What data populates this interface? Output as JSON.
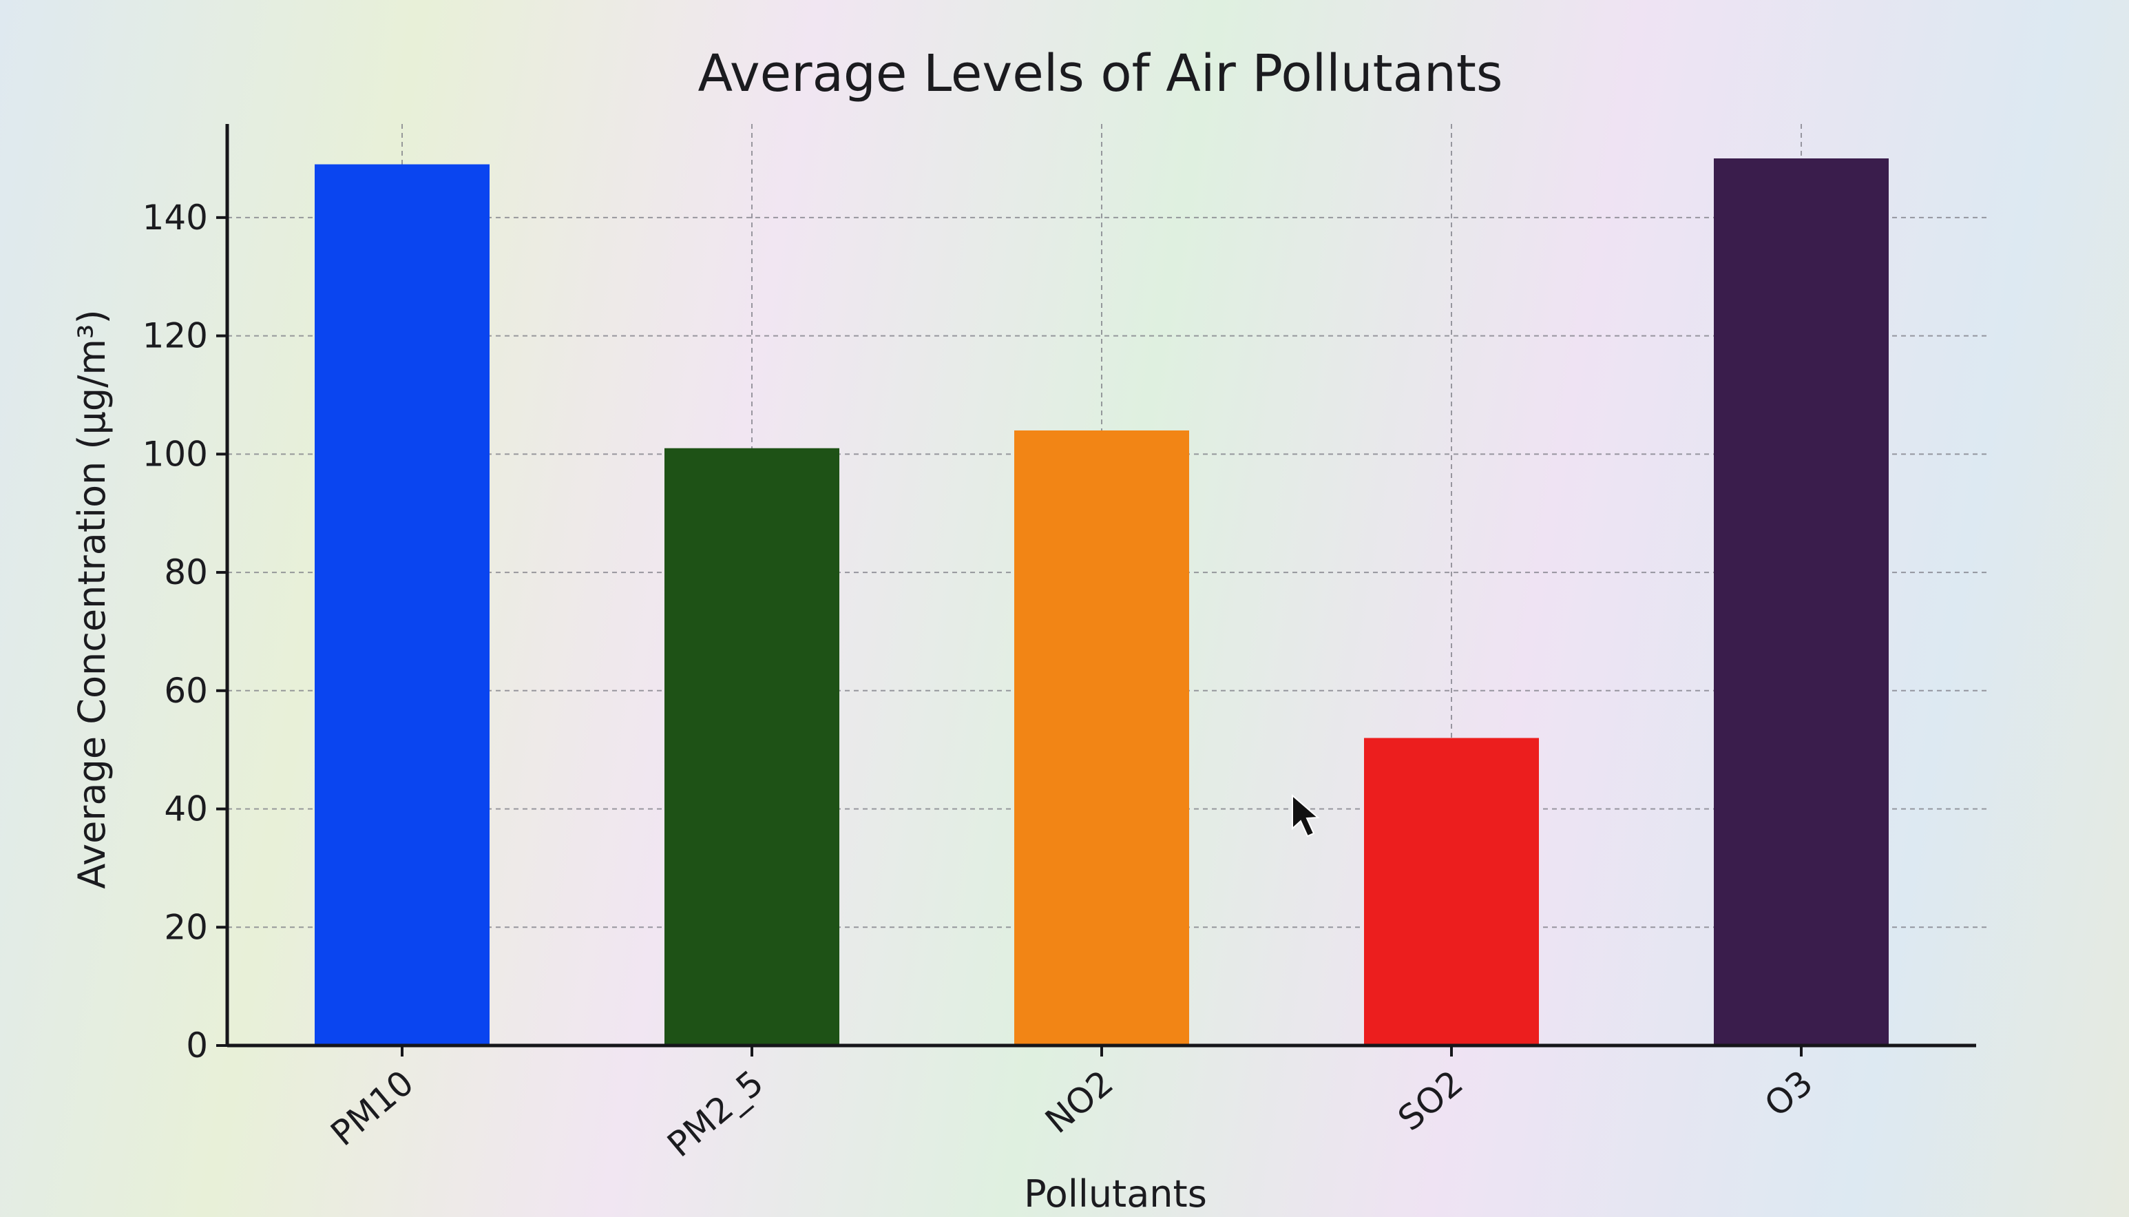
{
  "chart_data": {
    "type": "bar",
    "title": "Average Levels of Air Pollutants",
    "xlabel": "Pollutants",
    "ylabel": "Average Concentration (µg/m³)",
    "categories": [
      "PM10",
      "PM2_5",
      "NO2",
      "SO2",
      "O3"
    ],
    "values": [
      149,
      101,
      104,
      52,
      150
    ],
    "colors": [
      "#0a45f0",
      "#1e5216",
      "#f28515",
      "#ec1e1e",
      "#3a1d4c"
    ],
    "ylim": [
      0,
      150
    ],
    "yticks": [
      0,
      20,
      40,
      60,
      80,
      100,
      120,
      140
    ],
    "grid": true,
    "legend": "none"
  }
}
